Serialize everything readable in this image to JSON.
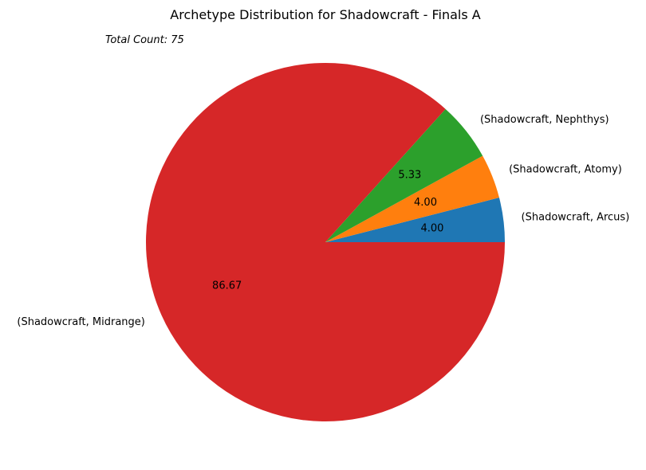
{
  "chart_data": {
    "type": "pie",
    "title": "Archetype Distribution for Shadowcraft - Finals A",
    "annotation": "Total Count: 75",
    "legend": "none",
    "start_angle": "0 degrees (east), counter-clockwise",
    "slices": [
      {
        "label": "(Shadowcraft, Arcus)",
        "value": 4.0,
        "pct_label": "4.00",
        "color": "#1f77b4"
      },
      {
        "label": "(Shadowcraft, Atomy)",
        "value": 4.0,
        "pct_label": "4.00",
        "color": "#ff7f0e"
      },
      {
        "label": "(Shadowcraft, Nephthys)",
        "value": 5.33,
        "pct_label": "5.33",
        "color": "#2ca02c"
      },
      {
        "label": "(Shadowcraft, Midrange)",
        "value": 86.67,
        "pct_label": "86.67",
        "color": "#d62728"
      }
    ]
  }
}
